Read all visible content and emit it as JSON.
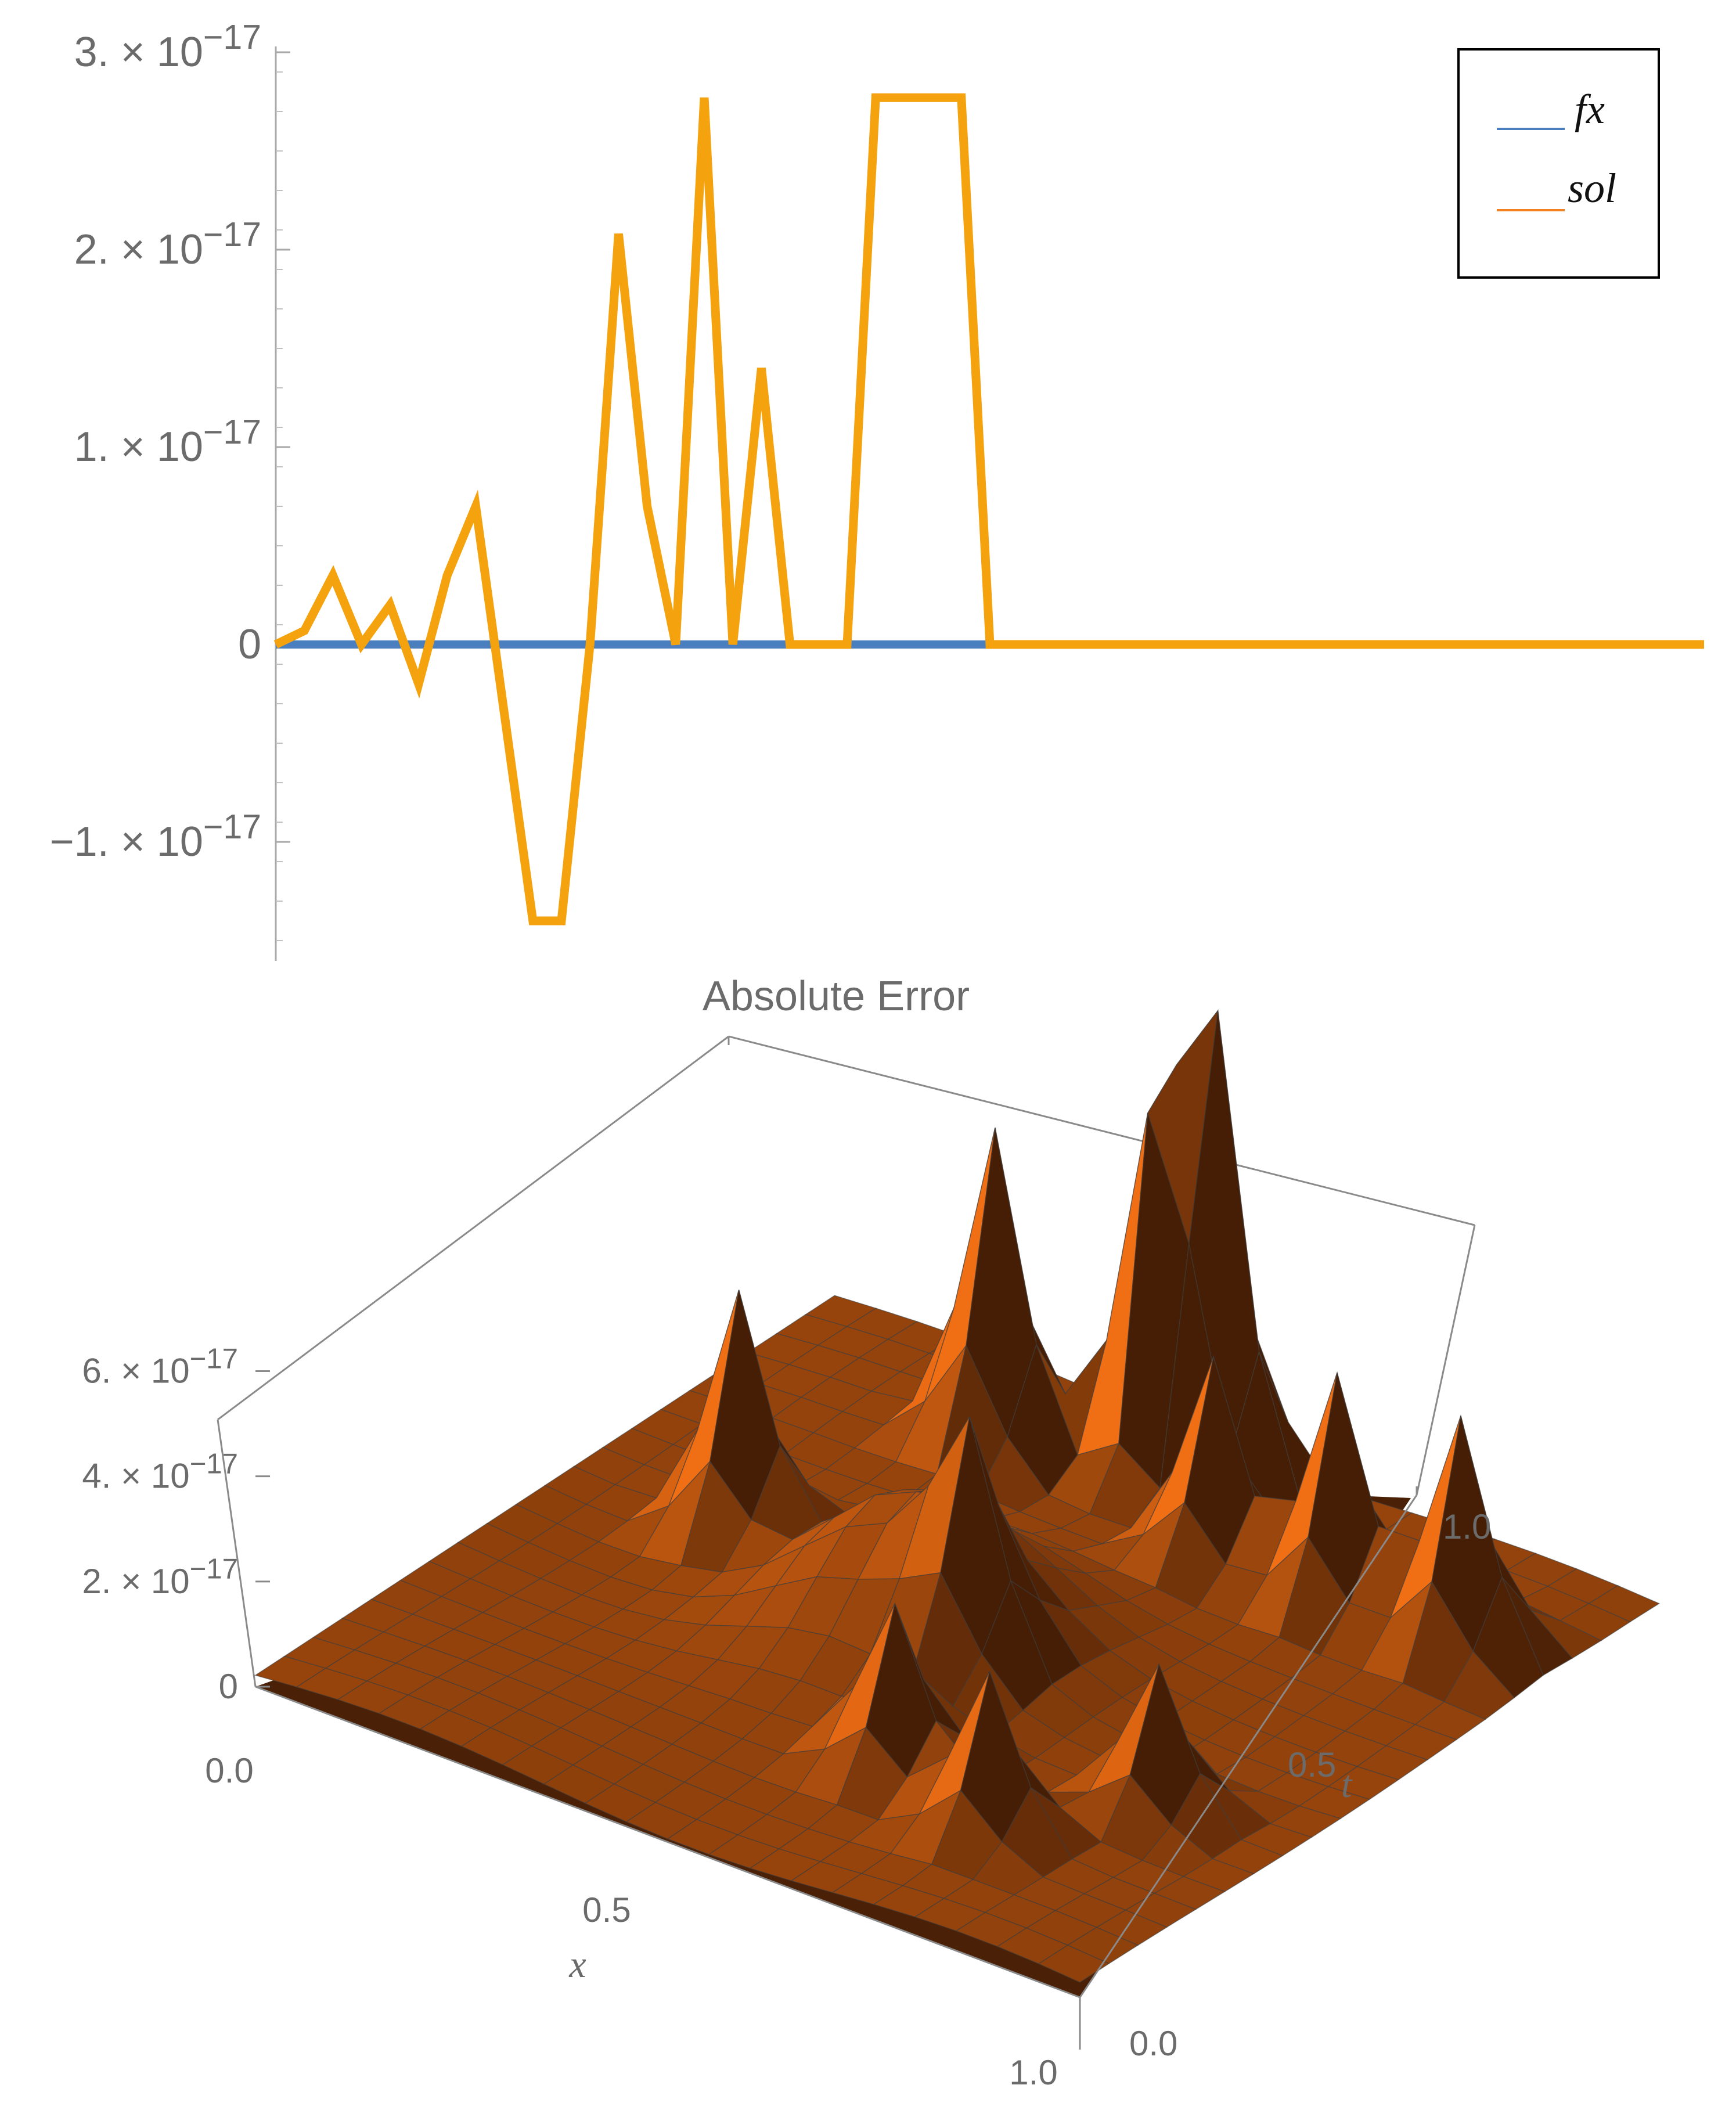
{
  "chart_data": [
    {
      "type": "line",
      "title": "",
      "xlabel": "",
      "ylabel": "",
      "ylim": [
        -1.55e-17,
        3e-17
      ],
      "yticks": [
        {
          "value": 3e-17,
          "mantissa": "3.",
          "exp": "−17"
        },
        {
          "value": 2e-17,
          "mantissa": "2.",
          "exp": "−17"
        },
        {
          "value": 1e-17,
          "mantissa": "1.",
          "exp": "−17"
        },
        {
          "value": 0,
          "mantissa": "0",
          "exp": ""
        },
        {
          "value": -1e-17,
          "mantissa": "−1.",
          "exp": "−17"
        }
      ],
      "x": [
        1,
        2,
        3,
        4,
        5,
        6,
        7,
        8,
        9,
        10,
        11,
        12,
        13,
        14,
        15,
        16,
        17,
        18,
        19,
        20,
        21,
        22,
        23,
        24,
        25,
        26,
        27,
        28,
        29,
        30,
        31,
        32,
        33,
        34,
        35,
        36,
        37,
        38,
        39,
        40,
        41,
        42,
        43,
        44,
        45,
        46,
        47,
        48,
        49,
        50,
        51
      ],
      "series": [
        {
          "name": "fx",
          "color": "#4a7fbf",
          "values": [
            0,
            0,
            0,
            0,
            0,
            0,
            0,
            0,
            0,
            0,
            0,
            0,
            0,
            0,
            0,
            0,
            0,
            0,
            0,
            0,
            0,
            0,
            0,
            0,
            0,
            0,
            0,
            0,
            0,
            0,
            0,
            0,
            0,
            0,
            0,
            0,
            0,
            0,
            0,
            0,
            0,
            0,
            0,
            0,
            0,
            0,
            0,
            0,
            0,
            0,
            0
          ]
        },
        {
          "name": "sol",
          "color": "#f5a20f",
          "values": [
            0,
            7e-19,
            3.5e-18,
            0,
            2e-18,
            -2e-18,
            3.5e-18,
            7e-18,
            -3.5e-18,
            -1.4e-17,
            -1.4e-17,
            0,
            2.08e-17,
            7e-18,
            0,
            2.77e-17,
            0,
            1.4e-17,
            0,
            0,
            0,
            2.77e-17,
            2.77e-17,
            2.77e-17,
            2.77e-17,
            0,
            0,
            0,
            0,
            0,
            0,
            0,
            0,
            0,
            0,
            0,
            0,
            0,
            0,
            0,
            0,
            0,
            0,
            0,
            0,
            0,
            0,
            0,
            0,
            0,
            0
          ]
        }
      ],
      "legend": {
        "placement": "top-right",
        "entries": [
          "fx",
          "sol"
        ]
      }
    },
    {
      "type": "surface",
      "title": "Absolute Error",
      "xlabel": "x",
      "ylabel": "t",
      "zlabel": "",
      "x_ticks": [
        "0.0",
        "0.5",
        "1.0"
      ],
      "t_ticks": [
        "0.0",
        "0.5",
        "1.0"
      ],
      "z_ticks": [
        {
          "value": 6e-17,
          "mantissa": "6.",
          "exp": "−17"
        },
        {
          "value": 4e-17,
          "mantissa": "4.",
          "exp": "−17"
        },
        {
          "value": 2e-17,
          "mantissa": "2.",
          "exp": "−17"
        },
        {
          "value": 0,
          "mantissa": "0",
          "exp": ""
        }
      ],
      "zlim": [
        0,
        6.5e-17
      ],
      "surface_color": "#b35a10",
      "peaks": [
        {
          "x": 0.45,
          "t": 0.92,
          "z": 6.5e-17
        },
        {
          "x": 0.5,
          "t": 0.95,
          "z": 6.5e-17
        },
        {
          "x": 0.3,
          "t": 0.85,
          "z": 5.5e-17
        },
        {
          "x": 0.2,
          "t": 0.55,
          "z": 4.2e-17
        },
        {
          "x": 0.55,
          "t": 0.45,
          "z": 3.2e-17
        },
        {
          "x": 0.6,
          "t": 0.25,
          "z": 2.8e-17
        },
        {
          "x": 0.75,
          "t": 0.2,
          "z": 2.8e-17
        },
        {
          "x": 0.6,
          "t": 0.8,
          "z": 3.6e-17
        },
        {
          "x": 0.75,
          "t": 0.8,
          "z": 4e-17
        },
        {
          "x": 0.9,
          "t": 0.8,
          "z": 4e-17
        },
        {
          "x": 0.85,
          "t": 0.35,
          "z": 2.6e-17
        }
      ]
    }
  ]
}
